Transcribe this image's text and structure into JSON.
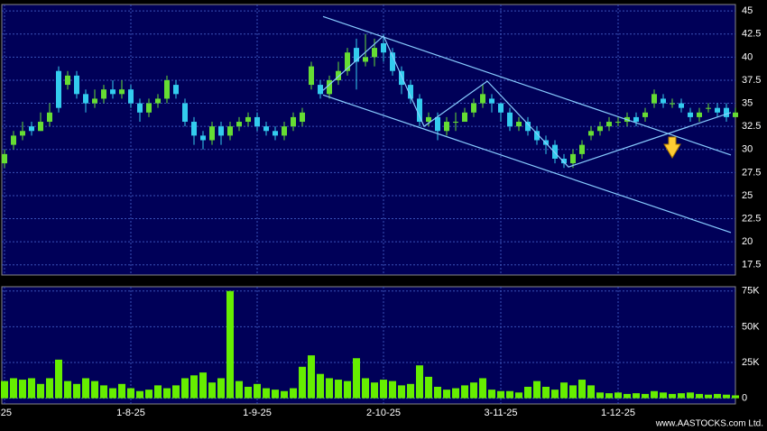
{
  "chart_data": [
    {
      "type": "candlestick",
      "categories": [
        "-25",
        null,
        null,
        null,
        null,
        null,
        null,
        null,
        null,
        null,
        null,
        null,
        null,
        null,
        "1-8-25",
        null,
        null,
        null,
        null,
        null,
        null,
        null,
        null,
        null,
        null,
        null,
        null,
        null,
        "1-9-25",
        null,
        null,
        null,
        null,
        null,
        null,
        null,
        null,
        null,
        null,
        null,
        null,
        null,
        "2-10-25",
        null,
        null,
        null,
        null,
        null,
        null,
        null,
        null,
        null,
        null,
        null,
        null,
        "3-11-25",
        null,
        null,
        null,
        null,
        null,
        null,
        null,
        null,
        null,
        null,
        null,
        null,
        "1-12-25",
        null,
        null,
        null,
        null,
        null,
        null,
        null,
        null,
        null,
        null,
        null,
        null,
        null
      ],
      "open": [
        28.5,
        30.5,
        31.5,
        32.5,
        32,
        33,
        38.5,
        37,
        38,
        36,
        35,
        35.5,
        36.5,
        36,
        36.5,
        35,
        34,
        35,
        35.5,
        37,
        35,
        33,
        31.5,
        31,
        32.5,
        31.5,
        32.5,
        33,
        33.5,
        32.5,
        32,
        31.5,
        32.5,
        33,
        37,
        37,
        36,
        37.5,
        38.5,
        41,
        39.5,
        40,
        41.5,
        40.5,
        38.5,
        37,
        35.5,
        33,
        33.5,
        32,
        33,
        33,
        34,
        35,
        35.5,
        35,
        34,
        32.5,
        33,
        32,
        31,
        30.5,
        29,
        28.5,
        29.5,
        31.5,
        32,
        32.5,
        33,
        33,
        33.5,
        33.5,
        35,
        35.5,
        35,
        35,
        34,
        33.5,
        34.5,
        34.5,
        34.5,
        33.5
      ],
      "high": [
        30,
        32,
        33,
        33,
        34,
        35,
        39,
        38.5,
        38.5,
        36.5,
        36.5,
        37,
        37.5,
        37.5,
        37,
        35.5,
        35.5,
        36,
        38,
        37.5,
        35.5,
        33.5,
        32,
        33,
        33,
        33,
        33.5,
        34,
        34,
        33,
        32.5,
        33,
        34,
        34.5,
        39.5,
        37.5,
        38,
        39.5,
        41,
        42,
        42.5,
        42,
        42.5,
        41,
        39,
        37.5,
        36,
        34,
        34,
        33.5,
        34,
        34.5,
        35.5,
        37,
        36,
        35,
        34.5,
        33.5,
        33.5,
        32.5,
        31.5,
        31,
        29.5,
        30,
        31,
        32.5,
        33,
        33.5,
        33.5,
        34,
        34,
        34.5,
        36.5,
        36,
        35.5,
        35.5,
        34.5,
        34.5,
        35,
        35,
        35,
        34.5
      ],
      "low": [
        28,
        30,
        31,
        31.5,
        32,
        32.5,
        34,
        36.5,
        35.5,
        34,
        34.5,
        35,
        35.5,
        35.5,
        34.5,
        33,
        33.5,
        34.5,
        35,
        35.5,
        32.5,
        30.5,
        30,
        30.5,
        30.5,
        31,
        32,
        32.5,
        32,
        31.5,
        31,
        31,
        32,
        32.5,
        36.5,
        35.5,
        35.5,
        37,
        38,
        36.5,
        39,
        39,
        39.5,
        38,
        36,
        35,
        32.5,
        32.5,
        31,
        31.5,
        32,
        33,
        33.5,
        34.5,
        34,
        33,
        32,
        32,
        31.5,
        30.5,
        29.5,
        28.5,
        28,
        28,
        29,
        31,
        31.5,
        32,
        32.5,
        32.5,
        32.5,
        33,
        34.5,
        34.5,
        34.5,
        34,
        33,
        33,
        34,
        33.5,
        33,
        33.5
      ],
      "close": [
        29.5,
        31.5,
        32,
        32,
        33,
        34,
        34.5,
        38,
        36,
        35,
        35.5,
        36.5,
        36,
        36.5,
        35,
        34,
        35,
        35.5,
        37.5,
        36,
        33,
        31.5,
        31,
        32.5,
        31.5,
        32.5,
        33,
        33.5,
        32.5,
        32,
        31.5,
        32.5,
        33.5,
        34,
        39,
        36,
        37.5,
        38.5,
        40.5,
        39.5,
        40,
        41,
        40.5,
        38.5,
        37,
        35.5,
        33,
        33.5,
        32,
        33,
        33,
        34,
        35,
        36,
        35,
        34,
        32.5,
        33,
        32,
        31,
        30.5,
        29,
        28.5,
        29.5,
        30.5,
        32,
        32.5,
        33,
        33,
        33.5,
        33,
        34,
        36,
        35,
        35,
        34.5,
        33.5,
        34,
        34.5,
        34,
        33.5,
        34
      ],
      "up_color": "#66dd33",
      "down_color": "#33ccee",
      "ylim": [
        16.4,
        45.7
      ],
      "yticks": [
        17.5,
        20,
        22.5,
        25,
        27.5,
        30,
        32.5,
        35,
        37.5,
        40,
        42.5,
        45
      ],
      "grid": true,
      "trendlines": [
        {
          "x": [
            35.3,
            80.5
          ],
          "y": [
            44.4,
            29.4
          ]
        },
        {
          "x": [
            35.3,
            80.5
          ],
          "y": [
            35.9,
            21.0
          ]
        },
        {
          "x": [
            35.3,
            42,
            46.5,
            53.5,
            62.5,
            80.5
          ],
          "y": [
            36.4,
            42.3,
            32.5,
            37.4,
            28.1,
            34.0
          ]
        }
      ],
      "trend_color": "#88ccff"
    },
    {
      "type": "bar",
      "values": [
        12000,
        14000,
        13000,
        14000,
        10000,
        14000,
        27000,
        12000,
        10000,
        14000,
        12000,
        9000,
        7000,
        10000,
        7000,
        5000,
        6000,
        9000,
        7000,
        9000,
        14000,
        16000,
        18000,
        11000,
        14000,
        75000,
        12000,
        8000,
        10000,
        7000,
        6000,
        5000,
        7000,
        22000,
        30000,
        17000,
        14000,
        13000,
        12000,
        28000,
        14000,
        11000,
        13000,
        12000,
        9000,
        10000,
        23000,
        15000,
        8000,
        6000,
        7000,
        9000,
        11000,
        14000,
        6000,
        5000,
        5000,
        4000,
        8000,
        12000,
        8000,
        6000,
        11000,
        9000,
        13000,
        9000,
        4000,
        3500,
        4000,
        3000,
        3500,
        3000,
        5000,
        4000,
        3000,
        3500,
        4000,
        3000,
        2500,
        3000,
        2500,
        2000
      ],
      "color": "#66ee00",
      "ylim": [
        -4000,
        78000
      ],
      "yticks": [
        0,
        {
          "value": 25000,
          "label": "25K"
        },
        {
          "value": 50000,
          "label": "50K"
        },
        {
          "value": 75000,
          "label": "75K"
        }
      ],
      "grid": true,
      "source": "www.AASTOCKS.com Ltd."
    }
  ]
}
